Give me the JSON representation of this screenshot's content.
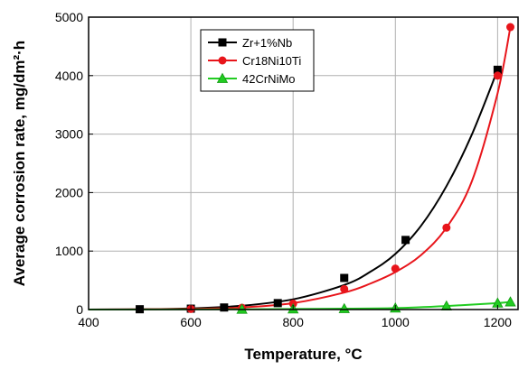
{
  "chart_data": {
    "type": "scatter",
    "xlabel": "Temperature, °C",
    "ylabel": "Average corrosion rate, mg/dm²·h",
    "xlim": [
      400,
      1240
    ],
    "ylim": [
      0,
      5000
    ],
    "xticks": [
      400,
      600,
      800,
      1000,
      1200
    ],
    "yticks": [
      0,
      1000,
      2000,
      3000,
      4000,
      5000
    ],
    "grid": true,
    "legend_position": "top-left",
    "series": [
      {
        "name": "Zr+1%Nb",
        "color": "#000000",
        "marker": "square",
        "points": [
          [
            500,
            5
          ],
          [
            600,
            15
          ],
          [
            665,
            35
          ],
          [
            770,
            110
          ],
          [
            900,
            540
          ],
          [
            1020,
            1190
          ],
          [
            1200,
            4100
          ]
        ],
        "curve": [
          [
            400,
            0
          ],
          [
            500,
            5
          ],
          [
            600,
            20
          ],
          [
            700,
            65
          ],
          [
            800,
            175
          ],
          [
            900,
            420
          ],
          [
            950,
            640
          ],
          [
            1000,
            950
          ],
          [
            1050,
            1430
          ],
          [
            1100,
            2110
          ],
          [
            1150,
            3000
          ],
          [
            1200,
            4100
          ]
        ]
      },
      {
        "name": "Cr18Ni10Ti",
        "color": "#e8151b",
        "marker": "circle",
        "points": [
          [
            600,
            10
          ],
          [
            700,
            30
          ],
          [
            800,
            100
          ],
          [
            900,
            350
          ],
          [
            1000,
            700
          ],
          [
            1100,
            1400
          ],
          [
            1200,
            4000
          ],
          [
            1225,
            4830
          ]
        ],
        "curve": [
          [
            400,
            0
          ],
          [
            600,
            10
          ],
          [
            700,
            35
          ],
          [
            800,
            110
          ],
          [
            900,
            290
          ],
          [
            950,
            440
          ],
          [
            1000,
            640
          ],
          [
            1050,
            930
          ],
          [
            1100,
            1400
          ],
          [
            1150,
            2200
          ],
          [
            1200,
            3700
          ],
          [
            1225,
            4830
          ]
        ]
      },
      {
        "name": "42CrNiMo",
        "color": "#22cc22",
        "marker": "triangle",
        "points": [
          [
            700,
            5
          ],
          [
            800,
            10
          ],
          [
            900,
            15
          ],
          [
            1000,
            25
          ],
          [
            1100,
            60
          ],
          [
            1200,
            110
          ],
          [
            1225,
            130
          ]
        ],
        "curve": [
          [
            400,
            0
          ],
          [
            700,
            5
          ],
          [
            800,
            10
          ],
          [
            900,
            15
          ],
          [
            1000,
            25
          ],
          [
            1100,
            60
          ],
          [
            1200,
            110
          ],
          [
            1225,
            130
          ]
        ]
      }
    ]
  }
}
